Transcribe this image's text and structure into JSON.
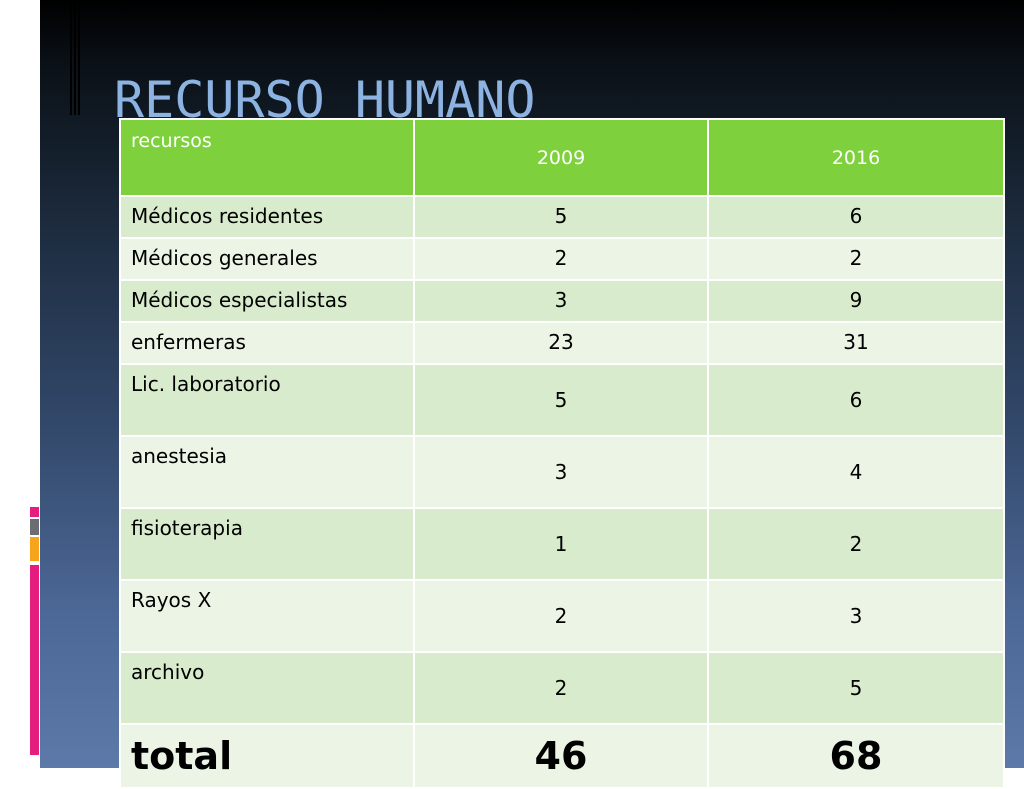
{
  "slide": {
    "title": "RECURSO HUMANO"
  },
  "table": {
    "headers": [
      "recursos",
      "2009",
      "2016"
    ],
    "rows": [
      {
        "label": "Médicos residentes",
        "v2009": "5",
        "v2016": "6"
      },
      {
        "label": "Médicos generales",
        "v2009": "2",
        "v2016": "2"
      },
      {
        "label": "Médicos especialistas",
        "v2009": "3",
        "v2016": "9"
      },
      {
        "label": "enfermeras",
        "v2009": "23",
        "v2016": "31"
      },
      {
        "label": "Lic. laboratorio",
        "v2009": "5",
        "v2016": "6"
      },
      {
        "label": "anestesia",
        "v2009": "3",
        "v2016": "4"
      },
      {
        "label": "fisioterapia",
        "v2009": "1",
        "v2016": "2"
      },
      {
        "label": "Rayos X",
        "v2009": "2",
        "v2016": "3"
      },
      {
        "label": "archivo",
        "v2009": "2",
        "v2016": "5"
      }
    ],
    "total": {
      "label": "total",
      "v2009": "46",
      "v2016": "68"
    }
  },
  "colors": {
    "header_green": "#7ed13c",
    "row_dark": "#d8ebcc",
    "row_light": "#ecf4e5",
    "title_blue": "#8db3e2",
    "accent_pink": "#e41d7f",
    "accent_orange": "#f5a41c",
    "accent_gray": "#6c6d73"
  }
}
